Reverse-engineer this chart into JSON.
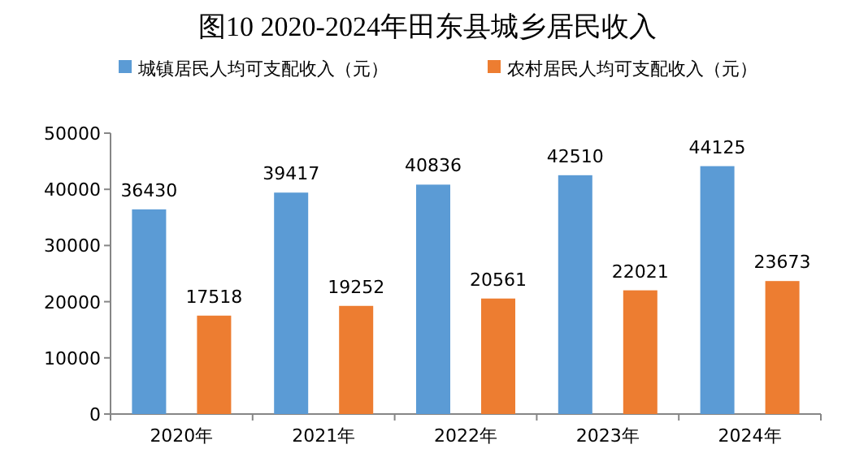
{
  "chart_data": {
    "type": "bar",
    "title": "图10   2020-2024年田东县城乡居民收入",
    "categories": [
      "2020年",
      "2021年",
      "2022年",
      "2023年",
      "2024年"
    ],
    "series": [
      {
        "name": "城镇居民人均可支配收入（元）",
        "color": "#5b9bd5",
        "values": [
          36430,
          39417,
          40836,
          42510,
          44125
        ]
      },
      {
        "name": "农村居民人均可支配收入（元）",
        "color": "#ed7d31",
        "values": [
          17518,
          19252,
          20561,
          22021,
          23673
        ]
      }
    ],
    "ylim": [
      0,
      50000
    ],
    "yticks": [
      0,
      10000,
      20000,
      30000,
      40000,
      50000
    ],
    "grid": false,
    "legend": "top",
    "data_labels": true
  }
}
